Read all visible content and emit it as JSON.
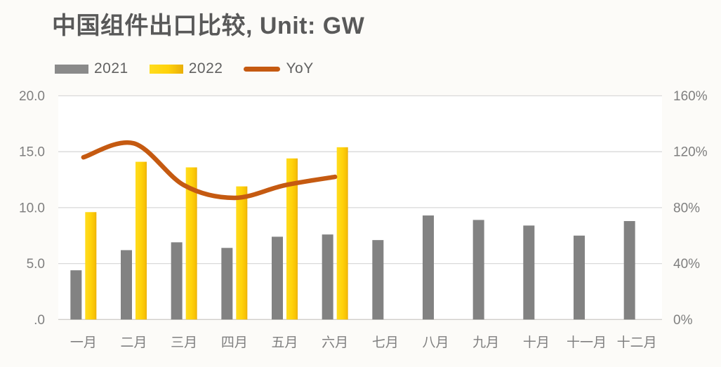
{
  "title": "中国组件出口比较, Unit: GW",
  "legend": {
    "items": [
      {
        "label": "2021",
        "swatch": "bar",
        "color": "#8a8a8a"
      },
      {
        "label": "2022",
        "swatch": "bar",
        "color": "#ffd20a"
      },
      {
        "label": "YoY",
        "swatch": "line",
        "color": "#c55a11"
      }
    ]
  },
  "chart_data": {
    "type": "bar",
    "title": "中国组件出口比较, Unit: GW",
    "subtitle": "",
    "categories": [
      "一月",
      "二月",
      "三月",
      "四月",
      "五月",
      "六月",
      "七月",
      "八月",
      "九月",
      "十月",
      "十一月",
      "十二月"
    ],
    "series": [
      {
        "name": "2021",
        "type": "bar",
        "axis": "left",
        "color": "#828282",
        "values": [
          4.4,
          6.2,
          6.9,
          6.4,
          7.4,
          7.6,
          7.1,
          9.3,
          8.9,
          8.4,
          7.5,
          8.8
        ]
      },
      {
        "name": "2022",
        "type": "bar",
        "axis": "left",
        "color": "#ffd20a",
        "values": [
          9.6,
          14.1,
          13.6,
          11.9,
          14.4,
          15.4,
          null,
          null,
          null,
          null,
          null,
          null
        ]
      },
      {
        "name": "YoY",
        "type": "line",
        "axis": "right",
        "color": "#c55a11",
        "unit": "%",
        "values": [
          116,
          126,
          96,
          87,
          96,
          102,
          null,
          null,
          null,
          null,
          null,
          null
        ]
      }
    ],
    "left_axis": {
      "label": "GW",
      "min": 0,
      "max": 20,
      "tick_labels": [
        "20.0",
        "15.0",
        "10.0",
        "5.0",
        ".0"
      ],
      "tick_values": [
        20,
        15,
        10,
        5,
        0
      ]
    },
    "right_axis": {
      "label": "%",
      "min": 0,
      "max": 160,
      "tick_labels": [
        "160%",
        "120%",
        "80%",
        "40%",
        "0%"
      ],
      "tick_values": [
        160,
        120,
        80,
        40,
        0
      ]
    },
    "grid": true,
    "legend_position": "top-left"
  },
  "colors": {
    "background": "#fcfbf8",
    "plot_background": "#ffffff",
    "gridline": "#d9d9d9",
    "axis_line": "#d0cecb",
    "bar_2021": "#828282",
    "bar_2022_light": "#ffdc1e",
    "bar_2022": "#ffd20a",
    "bar_2022_edge": "#e9ae09",
    "yoy_line": "#c55a11",
    "title_text": "#595959",
    "tick_text": "#7f7f7f"
  }
}
